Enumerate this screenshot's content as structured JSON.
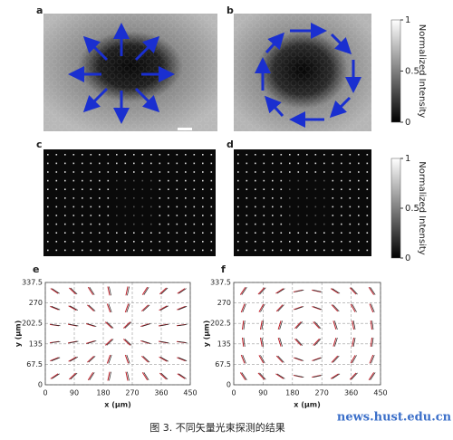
{
  "panels": [
    "a",
    "b",
    "c",
    "d"
  ],
  "colorbars": [
    {
      "label": "Normalized  Intensity",
      "lim": [
        0,
        1
      ],
      "ticks": [
        0,
        0.5,
        1
      ]
    },
    {
      "label": "Normalized  Intensity",
      "lim": [
        0,
        1
      ],
      "ticks": [
        0,
        0.5,
        1
      ]
    }
  ],
  "chart_data": [
    {
      "type": "scatter",
      "label": "e",
      "xlabel": "x (μm)",
      "ylabel": "y (μm)",
      "xlim": [
        0,
        450
      ],
      "ylim": [
        0,
        337.5
      ],
      "xticks": [
        0,
        90,
        180,
        270,
        360,
        450
      ],
      "yticks": [
        0,
        67.5,
        135,
        202.5,
        270,
        337.5
      ],
      "grid": true
    },
    {
      "type": "scatter",
      "label": "f",
      "xlabel": "x (μm)",
      "ylabel": "y (μm)",
      "xlim": [
        0,
        450
      ],
      "ylim": [
        0,
        337.5
      ],
      "xticks": [
        0,
        90,
        180,
        270,
        360,
        450
      ],
      "yticks": [
        0,
        67.5,
        135,
        202.5,
        270,
        337.5
      ],
      "grid": true
    }
  ],
  "caption": "图 3. 不同矢量光束探测的结果",
  "watermark": "news.hust.edu.cn"
}
